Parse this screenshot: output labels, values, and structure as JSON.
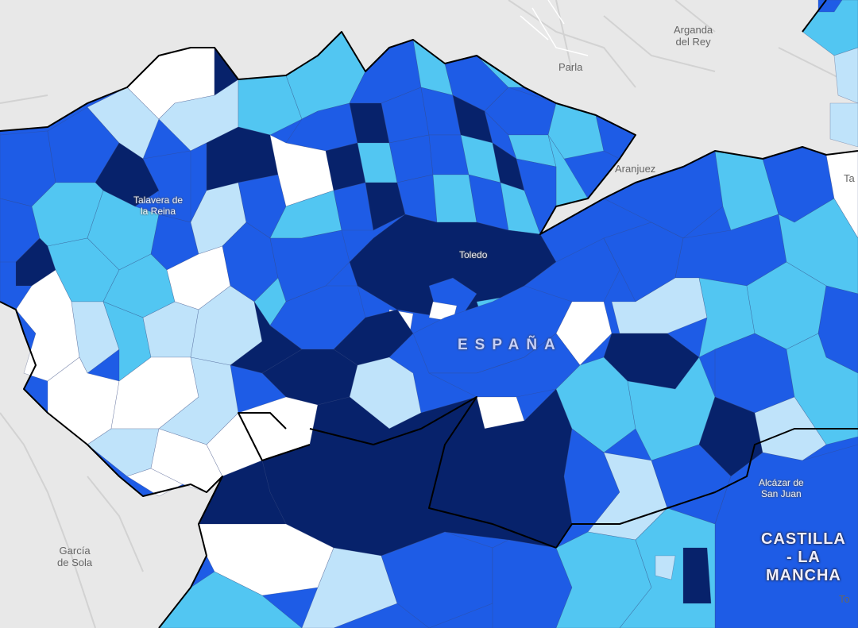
{
  "map": {
    "colors": {
      "background": "#e8e8e8",
      "none": "#ffffff",
      "class1": "#bfe3fa",
      "class2": "#52c6f2",
      "class3": "#1e5ce6",
      "class4": "#07226b",
      "border": "#000000"
    },
    "basemap_labels": {
      "parla": "Parla",
      "arganda": "Arganda\ndel Rey",
      "aranjuez": "Aranjuez",
      "garcia": "García\nde Sola",
      "ta": "Ta",
      "to": "To"
    },
    "choropleth_labels": {
      "talavera": "Talavera de\nla Reina",
      "toledo": "Toledo",
      "espana": "ESPAÑA",
      "alcazar": "Alcázar de\nSan Juan",
      "castilla": "CASTILLA\n- LA\nMANCHA"
    }
  }
}
